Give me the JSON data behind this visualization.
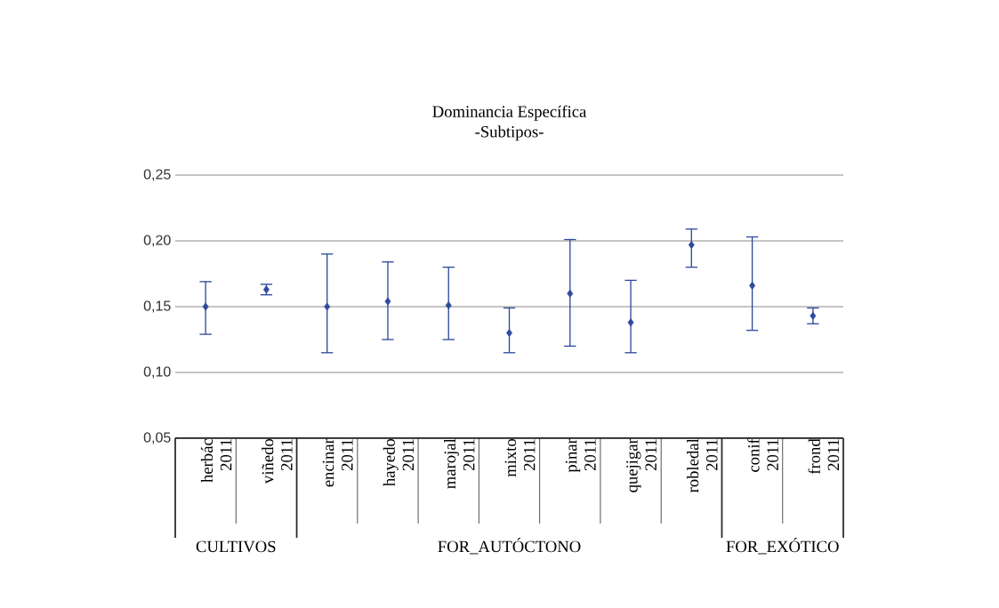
{
  "chart_data": {
    "type": "scatter",
    "title": "Dominancia Específica",
    "subtitle": "-Subtipos-",
    "categories": [
      "herbác 2011",
      "viñedo 2011",
      "encinar 2011",
      "hayedo 2011",
      "marojal 2011",
      "mixto 2011",
      "pinar 2011",
      "quejigar 2011",
      "robledal 2011",
      "conif 2011",
      "frond 2011"
    ],
    "values": [
      0.15,
      0.163,
      0.15,
      0.154,
      0.151,
      0.13,
      0.16,
      0.138,
      0.197,
      0.166,
      0.143
    ],
    "errors": [
      [
        0.129,
        0.169
      ],
      [
        0.159,
        0.167
      ],
      [
        0.115,
        0.19
      ],
      [
        0.125,
        0.184
      ],
      [
        0.125,
        0.18
      ],
      [
        0.115,
        0.149
      ],
      [
        0.12,
        0.201
      ],
      [
        0.115,
        0.17
      ],
      [
        0.18,
        0.209
      ],
      [
        0.132,
        0.203
      ],
      [
        0.137,
        0.149
      ]
    ],
    "color": "#2e4a9e",
    "marker": "diamond",
    "grid": "y",
    "ylim": [
      0.05,
      0.25
    ],
    "yticks": [
      {
        "value": 0.05,
        "label": "0,05"
      },
      {
        "value": 0.1,
        "label": "0,10"
      },
      {
        "value": 0.15,
        "label": "0,15"
      },
      {
        "value": 0.2,
        "label": "0,20"
      },
      {
        "value": 0.25,
        "label": "0,25"
      }
    ],
    "annotations": [
      "CULTIVOS",
      "FOR_AUTÓCTONO",
      "FOR_EXÓTICO"
    ]
  }
}
